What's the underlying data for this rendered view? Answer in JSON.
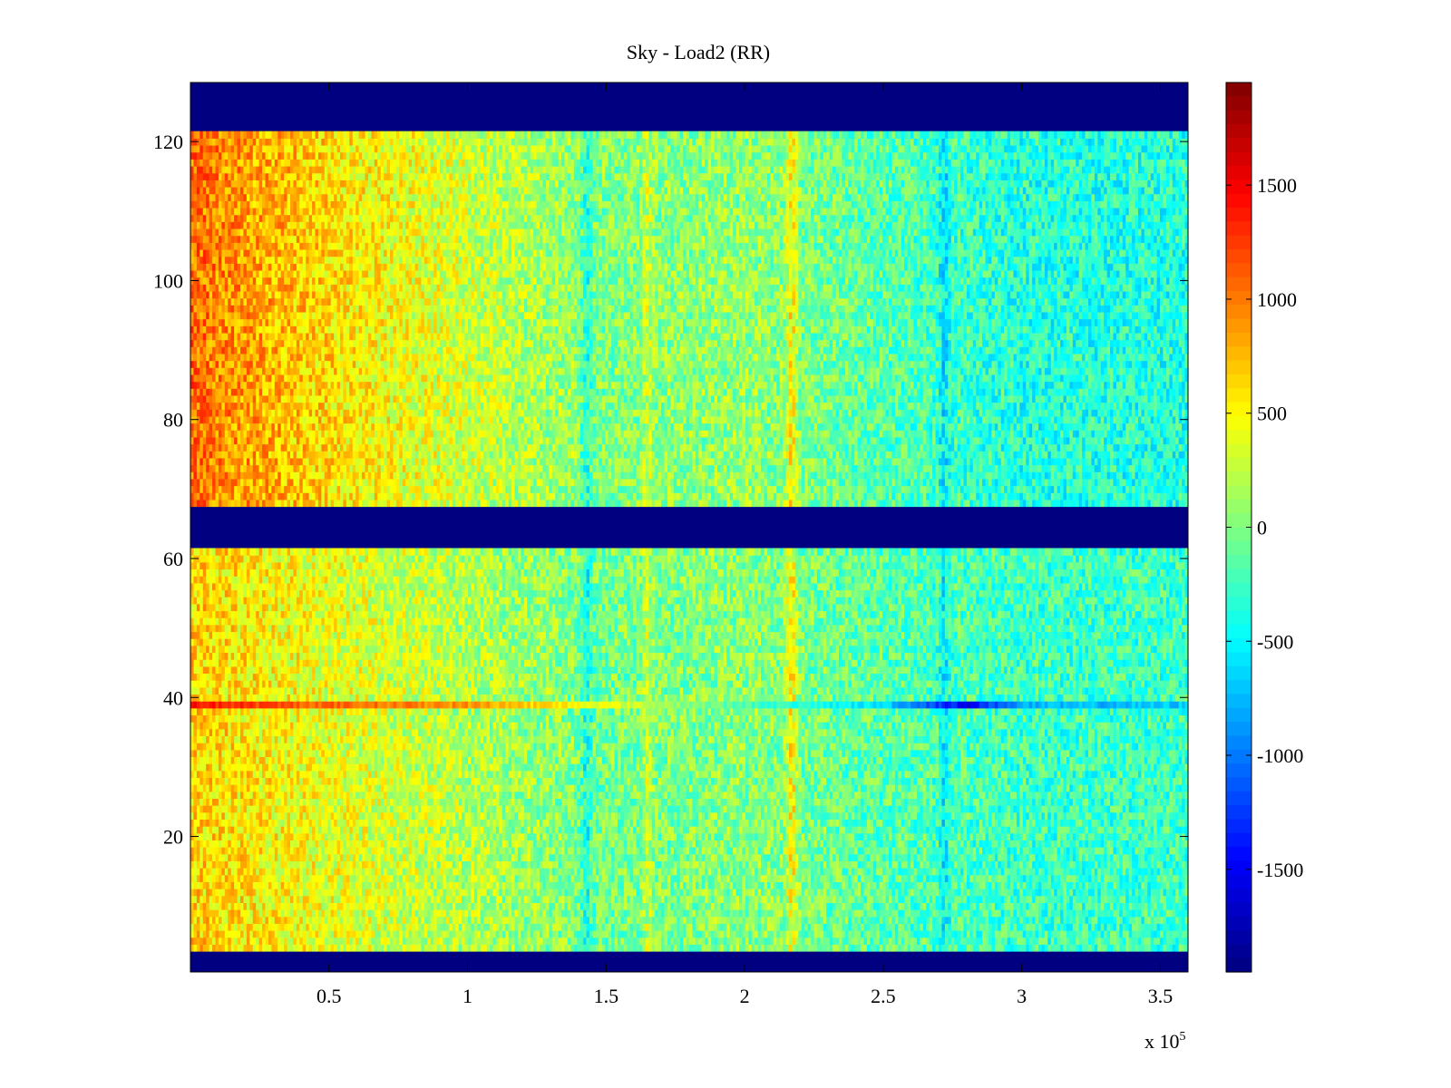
{
  "chart_data": {
    "type": "heatmap",
    "title": "Sky - Load2 (RR)",
    "xlabel": "",
    "ylabel": "",
    "x_multiplier_label": "x 10",
    "x_multiplier_exponent": "5",
    "xlim": [
      0,
      3.6
    ],
    "ylim": [
      0.5,
      128.5
    ],
    "x_ticks": [
      0.5,
      1,
      1.5,
      2,
      2.5,
      3,
      3.5
    ],
    "x_tick_labels": [
      "0.5",
      "1",
      "1.5",
      "2",
      "2.5",
      "3",
      "3.5"
    ],
    "y_ticks": [
      20,
      40,
      60,
      80,
      100,
      120
    ],
    "y_tick_labels": [
      "20",
      "40",
      "60",
      "80",
      "100",
      "120"
    ],
    "colormap": "jet",
    "colorbar": {
      "range": [
        -1950,
        1950
      ],
      "ticks": [
        1500,
        1000,
        500,
        0,
        -500,
        -1000,
        -1500
      ],
      "tick_labels": [
        "1500",
        "1000",
        "500",
        "0",
        "-500",
        "-1000",
        "-1500"
      ],
      "location": "right"
    },
    "masked_rows": [
      {
        "from": 1,
        "to": 3,
        "value": -1950
      },
      {
        "from": 62,
        "to": 67,
        "value": -1950
      },
      {
        "from": 122,
        "to": 128,
        "value": -1950
      }
    ],
    "trend_x": [
      0,
      0.2,
      0.5,
      1.0,
      1.5,
      2.0,
      2.5,
      3.0,
      3.6
    ],
    "trend_upper": [
      1050,
      850,
      600,
      300,
      0,
      80,
      -150,
      -350,
      -350
    ],
    "trend_lower": [
      650,
      550,
      400,
      200,
      -50,
      50,
      -150,
      -250,
      -250
    ],
    "noise_amplitude": 350,
    "features": [
      {
        "kind": "row-streak",
        "row": 39,
        "x": [
          0,
          0.4,
          1.0,
          1.5,
          2.0,
          2.5,
          2.8,
          3.0,
          3.6
        ],
        "values": [
          1400,
          1100,
          900,
          400,
          -200,
          -600,
          -1500,
          -800,
          -700
        ]
      },
      {
        "kind": "column-band",
        "x": 2.17,
        "value": 500
      },
      {
        "kind": "column-band",
        "x": 1.65,
        "value": 250
      },
      {
        "kind": "column-band",
        "x": 1.43,
        "value": -400
      },
      {
        "kind": "column-band",
        "x": 2.72,
        "value": -300
      }
    ]
  }
}
